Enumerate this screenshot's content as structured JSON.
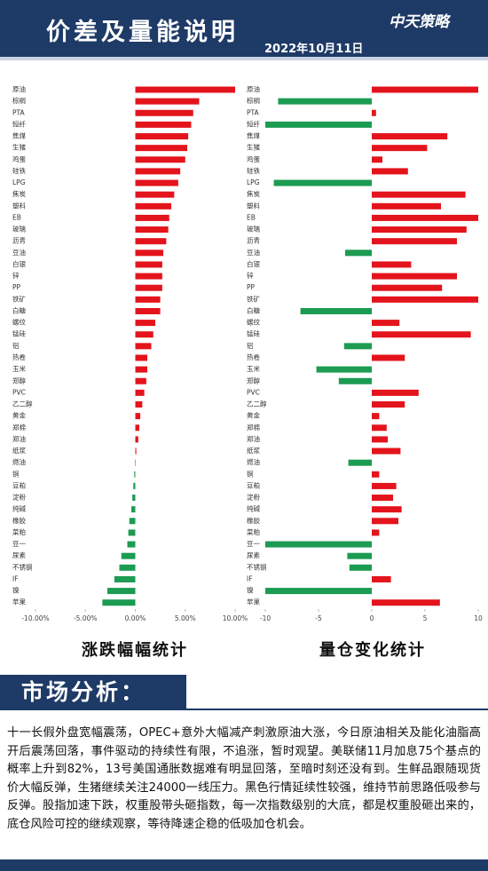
{
  "header": {
    "title": "价差及量能说明",
    "logo": "中天策略",
    "date": "2022年10月11日"
  },
  "chart_data": [
    {
      "type": "bar",
      "orientation": "horizontal",
      "title": "涨跌幅幅统计",
      "categories": [
        "原油",
        "棕榈",
        "PTA",
        "短纤",
        "焦煤",
        "生猪",
        "鸡蛋",
        "硅铁",
        "LPG",
        "焦炭",
        "塑料",
        "EB",
        "玻璃",
        "沥青",
        "豆油",
        "白银",
        "锌",
        "PP",
        "铁矿",
        "白糖",
        "螺纹",
        "锰硅",
        "铝",
        "热卷",
        "玉米",
        "郑醇",
        "PVC",
        "乙二醇",
        "黄金",
        "郑棉",
        "郑油",
        "纸浆",
        "燃油",
        "铜",
        "豆粕",
        "淀粉",
        "纯碱",
        "橡胶",
        "菜粕",
        "豆一",
        "尿素",
        "不锈钢",
        "IF",
        "镍",
        "苹果"
      ],
      "values": [
        10.0,
        6.4,
        5.8,
        5.6,
        5.3,
        5.2,
        5.0,
        4.5,
        4.3,
        3.9,
        3.6,
        3.4,
        3.3,
        3.1,
        2.8,
        2.7,
        2.7,
        2.7,
        2.5,
        2.5,
        2.0,
        1.8,
        1.6,
        1.2,
        1.2,
        1.1,
        0.9,
        0.7,
        0.5,
        0.4,
        0.3,
        0.1,
        0.05,
        -0.1,
        -0.2,
        -0.3,
        -0.4,
        -0.6,
        -0.7,
        -0.8,
        -1.4,
        -1.6,
        -2.1,
        -2.8,
        -3.3
      ],
      "xlim": [
        -10,
        10
      ],
      "xticks": [
        {
          "value": -10,
          "label": "-10.00%"
        },
        {
          "value": -5,
          "label": "-5.00%"
        },
        {
          "value": 0,
          "label": "0.00%"
        },
        {
          "value": 5,
          "label": "5.00%"
        },
        {
          "value": 10,
          "label": "10.00%"
        }
      ],
      "colors": {
        "positive": "#e3141c",
        "negative": "#1c9b52"
      }
    },
    {
      "type": "bar",
      "orientation": "horizontal",
      "title": "量仓变化统计",
      "categories": [
        "原油",
        "棕榈",
        "PTA",
        "短纤",
        "焦煤",
        "生猪",
        "鸡蛋",
        "硅铁",
        "LPG",
        "焦炭",
        "塑料",
        "EB",
        "玻璃",
        "沥青",
        "豆油",
        "白银",
        "锌",
        "PP",
        "铁矿",
        "白糖",
        "螺纹",
        "锰硅",
        "铝",
        "热卷",
        "玉米",
        "郑醇",
        "PVC",
        "乙二醇",
        "黄金",
        "郑棉",
        "郑油",
        "纸浆",
        "燃油",
        "铜",
        "豆粕",
        "淀粉",
        "纯碱",
        "橡胶",
        "菜粕",
        "豆一",
        "尿素",
        "不锈钢",
        "IF",
        "镍",
        "苹果"
      ],
      "values": [
        10,
        -8.8,
        0.4,
        -10,
        7.1,
        5.2,
        1.0,
        3.4,
        -9.2,
        8.8,
        6.5,
        10,
        8.9,
        8.0,
        -2.5,
        3.7,
        8.0,
        6.6,
        10,
        -6.7,
        2.6,
        9.3,
        -2.6,
        3.1,
        -5.2,
        -3.1,
        4.4,
        3.1,
        0.7,
        1.4,
        1.5,
        2.7,
        -2.2,
        0.7,
        2.3,
        2.0,
        2.8,
        2.5,
        0.7,
        -10,
        -2.3,
        -2.1,
        1.8,
        -10,
        6.4
      ],
      "xlim": [
        -10,
        10
      ],
      "xticks": [
        -10,
        -5,
        0,
        5,
        10
      ],
      "colors": {
        "positive": "#e3141c",
        "negative": "#1c9b52"
      }
    }
  ],
  "analysis": {
    "title": "市场分析：",
    "text": "十一长假外盘宽幅震荡，OPEC+意外大幅减产刺激原油大涨，今日原油相关及能化油脂高开后震荡回落，事件驱动的持续性有限，不追涨，暂时观望。美联储11月加息75个基点的概率上升到82%，13号美国通胀数据难有明显回落，至暗时刻还没有到。生鲜品跟随现货价大幅反弹，生猪继续关注24000一线压力。黑色行情延续性较强，维持节前思路低吸参与反弹。股指加速下跌，权重股带头砸指数，每一次指数级别的大底，都是权重股砸出来的，底仓风险可控的继续观察，等待降速企稳的低吸加仓机会。"
  }
}
